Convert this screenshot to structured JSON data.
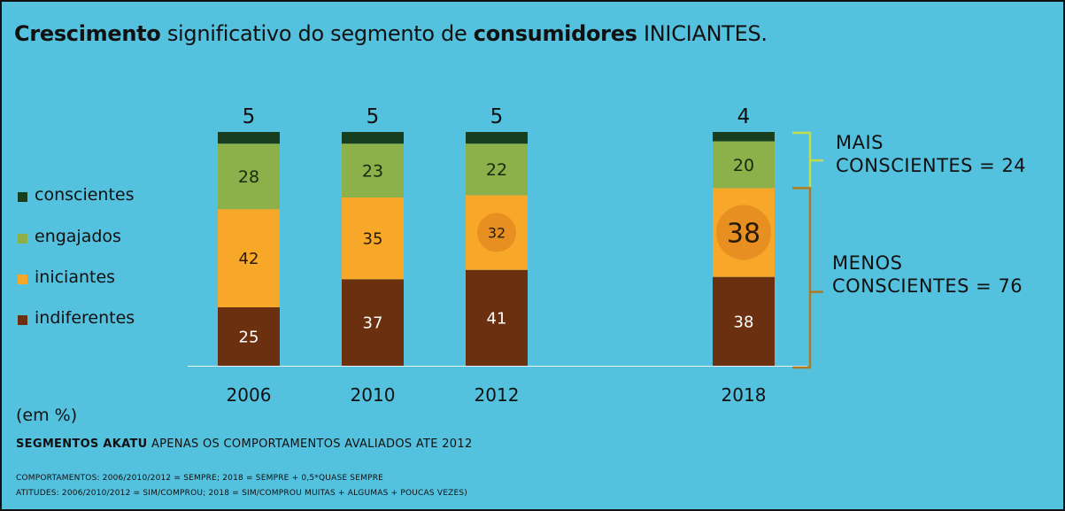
{
  "title": {
    "bold1": "Crescimento",
    "text1": " significativo do segmento de ",
    "bold2": "consumidores",
    "text2": " INICIANTES."
  },
  "colors": {
    "background": "#54c1de",
    "conscientes": "#173f1f",
    "engajados": "#8cb04a",
    "iniciantes": "#f7a829",
    "indiferentes": "#6a300f",
    "highlight": "#e88f22",
    "bracket_top": "#c2dc4a",
    "bracket_bottom": "#b07a22"
  },
  "legend": [
    {
      "label": "conscientes",
      "color": "#173f1f"
    },
    {
      "label": "engajados",
      "color": "#8cb04a"
    },
    {
      "label": "iniciantes",
      "color": "#f7a829"
    },
    {
      "label": "indiferentes",
      "color": "#6a300f"
    }
  ],
  "chart_data": {
    "type": "bar",
    "stacked": true,
    "categories": [
      "2006",
      "2010",
      "2012",
      "2018"
    ],
    "series": [
      {
        "name": "indiferentes",
        "values": [
          25,
          37,
          41,
          38
        ]
      },
      {
        "name": "iniciantes",
        "values": [
          42,
          35,
          32,
          38
        ]
      },
      {
        "name": "engajados",
        "values": [
          28,
          23,
          22,
          20
        ]
      },
      {
        "name": "conscientes",
        "values": [
          5,
          5,
          5,
          4
        ]
      }
    ],
    "highlighted": [
      {
        "series": "iniciantes",
        "category": "2012"
      },
      {
        "series": "iniciantes",
        "category": "2018"
      }
    ],
    "legend_position": "left",
    "grid": false
  },
  "brackets": {
    "mais_line1": "MAIS",
    "mais_line2": "CONSCIENTES = 24",
    "menos_line1": "MENOS",
    "menos_line2": "CONSCIENTES = 76"
  },
  "unit_label": "(em %)",
  "notes": {
    "bold": "SEGMENTOS AKATU",
    "rest": " APENAS OS COMPORTAMENTOS AVALIADOS ATE 2012",
    "line2": "COMPORTAMENTOS: 2006/2010/2012 = SEMPRE; 2018 = SEMPRE + 0,5*QUASE SEMPRE",
    "line3": "ATITUDES: 2006/2010/2012 = SIM/COMPROU; 2018 = SIM/COMPROU MUITAS + ALGUMAS + POUCAS VEZES)"
  }
}
